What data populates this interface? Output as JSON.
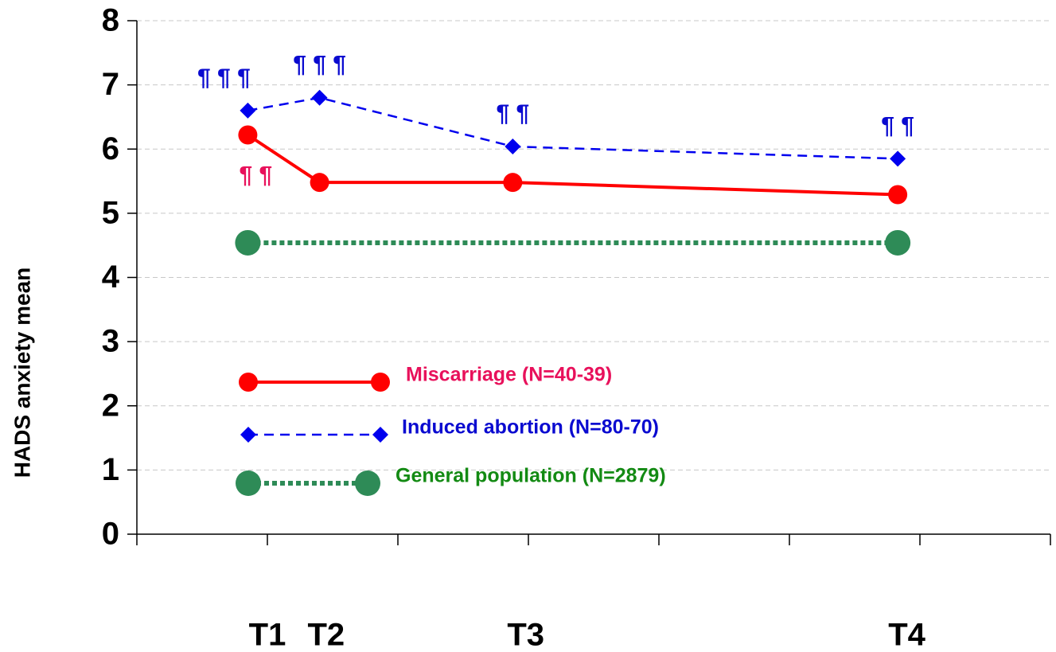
{
  "chart_data": {
    "type": "line",
    "ylabel": "HADS anxiety mean",
    "ylim": [
      0,
      8
    ],
    "yticks": [
      0,
      1,
      2,
      3,
      4,
      5,
      6,
      7,
      8
    ],
    "xlim": [
      0,
      7
    ],
    "xticks": [
      0,
      1,
      2,
      3,
      4,
      5,
      6,
      7
    ],
    "x_labels": [
      {
        "value": 1,
        "label": "T1"
      },
      {
        "value": 1.45,
        "label": "T2"
      },
      {
        "value": 2.98,
        "label": "T3"
      },
      {
        "value": 5.9,
        "label": "T4"
      }
    ],
    "grid": true,
    "series": [
      {
        "name": "Miscarriage (N=40-39)",
        "color": "#ff0000",
        "label_color": "#e8115b",
        "style": "solid",
        "marker": "circle",
        "x": [
          0.85,
          1.4,
          2.88,
          5.83
        ],
        "values": [
          6.22,
          5.48,
          5.48,
          5.29
        ],
        "annotations": [
          "¶ ¶",
          null,
          null,
          null
        ]
      },
      {
        "name": "Induced abortion (N=80-70)",
        "color": "#0000ee",
        "label_color": "#0a0ad0",
        "style": "dashed",
        "marker": "diamond",
        "x": [
          0.85,
          1.4,
          2.88,
          5.83
        ],
        "values": [
          6.6,
          6.8,
          6.04,
          5.85
        ],
        "annotations": [
          "¶ ¶ ¶",
          "¶ ¶ ¶",
          "¶ ¶",
          "¶ ¶"
        ]
      },
      {
        "name": "General population (N=2879)",
        "color": "#2e8b57",
        "label_color": "#138a13",
        "style": "dotted",
        "marker": "bigcircle",
        "x": [
          0.85,
          5.83
        ],
        "values": [
          4.54,
          4.54
        ]
      }
    ]
  }
}
